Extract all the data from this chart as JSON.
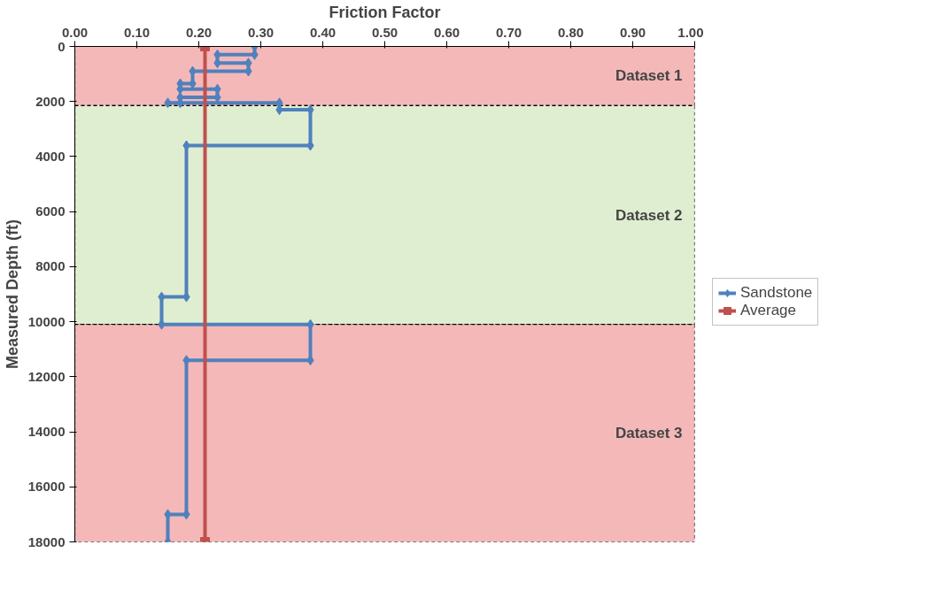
{
  "chart_data": {
    "type": "line",
    "xlabel": "Friction Factor",
    "ylabel": "Measured Depth (ft)",
    "xlim": [
      0,
      1
    ],
    "xticks": [
      {
        "value": 0,
        "label": "0.00"
      },
      {
        "value": 0.1,
        "label": "0.10"
      },
      {
        "value": 0.2,
        "label": "0.20"
      },
      {
        "value": 0.3,
        "label": "0.30"
      },
      {
        "value": 0.4,
        "label": "0.40"
      },
      {
        "value": 0.5,
        "label": "0.50"
      },
      {
        "value": 0.6,
        "label": "0.60"
      },
      {
        "value": 0.7,
        "label": "0.70"
      },
      {
        "value": 0.8,
        "label": "0.80"
      },
      {
        "value": 0.9,
        "label": "0.90"
      },
      {
        "value": 1,
        "label": "1.00"
      }
    ],
    "ylim": [
      18000,
      0
    ],
    "yticks": [
      0,
      2000,
      4000,
      6000,
      8000,
      10000,
      12000,
      14000,
      16000,
      18000
    ],
    "grid": "y",
    "legend": "right",
    "line_style": "solid",
    "series": [
      {
        "name": "Sandstone",
        "color": "#4f81bd",
        "marker": "diamond",
        "x": [
          0.29,
          0.29,
          0.23,
          0.23,
          0.28,
          0.28,
          0.19,
          0.19,
          0.17,
          0.17,
          0.23,
          0.23,
          0.17,
          0.17,
          0.15,
          0.33,
          0.33,
          0.38,
          0.38,
          0.18,
          0.18,
          0.14,
          0.14,
          0.38,
          0.38,
          0.18,
          0.18,
          0.15,
          0.15
        ],
        "values": [
          0,
          300,
          300,
          600,
          600,
          900,
          900,
          1350,
          1350,
          1550,
          1550,
          1850,
          1850,
          2050,
          2050,
          2050,
          2300,
          2300,
          3600,
          3600,
          9100,
          9100,
          10100,
          10100,
          11400,
          11400,
          17000,
          17000,
          18000
        ]
      },
      {
        "name": "Average",
        "color": "#c0504d",
        "marker": "square",
        "x": [
          0.21,
          0.21
        ],
        "values": [
          0,
          18000
        ]
      }
    ],
    "bands": [
      {
        "axis": "y",
        "from": 0,
        "to": 2150,
        "label": "Dataset 1",
        "color": "#f4b8b8"
      },
      {
        "axis": "y",
        "from": 2150,
        "to": 10100,
        "label": "Dataset 2",
        "color": "#dfeed0"
      },
      {
        "axis": "y",
        "from": 10100,
        "to": 18000,
        "label": "Dataset 3",
        "color": "#f4b8b8"
      }
    ]
  }
}
